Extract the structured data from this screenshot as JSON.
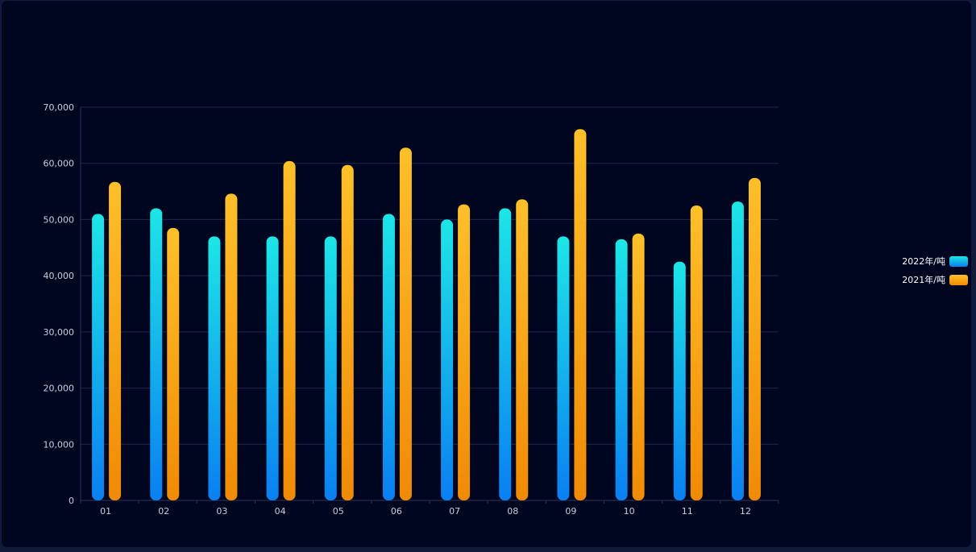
{
  "chart_data": {
    "type": "bar",
    "categories": [
      "01",
      "02",
      "03",
      "04",
      "05",
      "06",
      "07",
      "08",
      "09",
      "10",
      "11",
      "12"
    ],
    "series": [
      {
        "name": "2022年/吨",
        "values": [
          51000,
          52000,
          47000,
          47000,
          47000,
          51000,
          50000,
          52000,
          47000,
          46500,
          42500,
          53200
        ],
        "color_top": "#1de6e6",
        "color_bottom": "#0a7ff2"
      },
      {
        "name": "2021年/吨",
        "values": [
          56700,
          48500,
          54600,
          60400,
          59700,
          62800,
          52700,
          53600,
          66100,
          47500,
          52500,
          57400
        ],
        "color_top": "#ffc02a",
        "color_bottom": "#f08a05"
      }
    ],
    "ylim": [
      0,
      70000
    ],
    "yticks": [
      0,
      10000,
      20000,
      30000,
      40000,
      50000,
      60000,
      70000
    ],
    "ytick_labels": [
      "0",
      "10,000",
      "20,000",
      "30,000",
      "40,000",
      "50,000",
      "60,000",
      "70,000"
    ],
    "grid": true,
    "legend_position": "right",
    "background": "#010620",
    "grid_color": "#1c2a4a"
  }
}
